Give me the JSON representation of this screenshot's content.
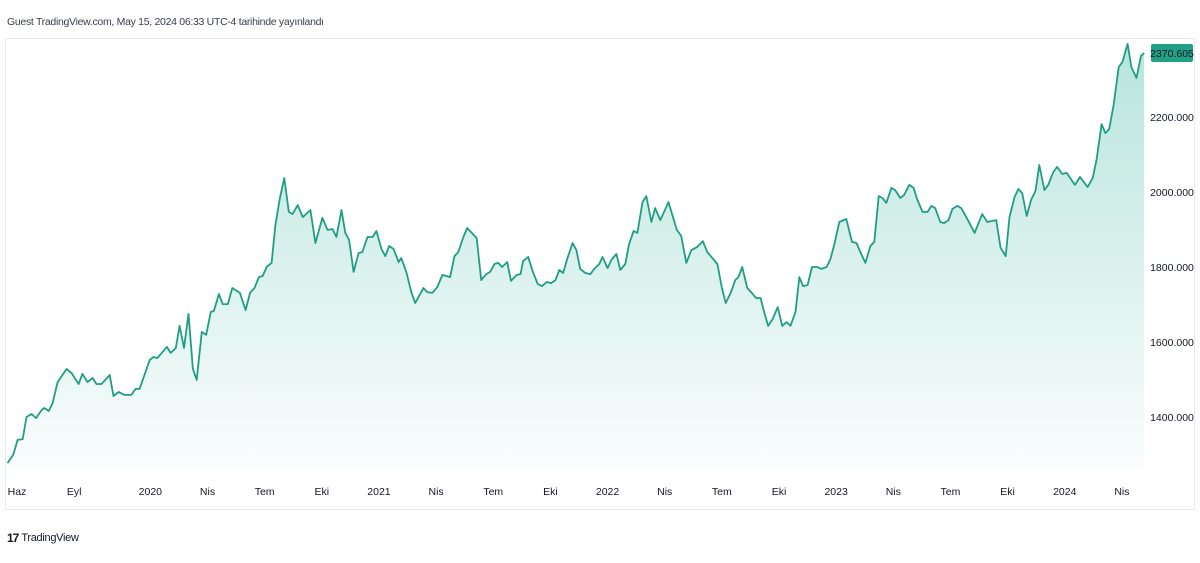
{
  "header": {
    "text": "Guest TradingView.com, May 15, 2024 06:33 UTC-4 tarihinde yayınlandı"
  },
  "footer": {
    "logo": "17",
    "brand": "TradingView"
  },
  "colors": {
    "line": "#1f9e86",
    "fill": "#22ab94",
    "price_label_bg": "#22a085",
    "price_label_text": "#ffffff"
  },
  "chart_data": {
    "type": "area",
    "title": "",
    "xlabel": "",
    "ylabel": "",
    "grid": false,
    "ylim": [
      1259,
      2411
    ],
    "y_ticks": [
      "1400.000",
      "1600.000",
      "1800.000",
      "2000.000",
      "2200.000"
    ],
    "x_ticks": [
      {
        "label": "Haz",
        "date": "2019-06-01"
      },
      {
        "label": "Eyl",
        "date": "2019-09-01"
      },
      {
        "label": "2020",
        "date": "2020-01-01"
      },
      {
        "label": "Nis",
        "date": "2020-04-01"
      },
      {
        "label": "Tem",
        "date": "2020-07-01"
      },
      {
        "label": "Eki",
        "date": "2020-10-01"
      },
      {
        "label": "2021",
        "date": "2021-01-01"
      },
      {
        "label": "Nis",
        "date": "2021-04-01"
      },
      {
        "label": "Tem",
        "date": "2021-07-01"
      },
      {
        "label": "Eki",
        "date": "2021-10-01"
      },
      {
        "label": "2022",
        "date": "2022-01-01"
      },
      {
        "label": "Nis",
        "date": "2022-04-01"
      },
      {
        "label": "Tem",
        "date": "2022-07-01"
      },
      {
        "label": "Eki",
        "date": "2022-10-01"
      },
      {
        "label": "2023",
        "date": "2023-01-01"
      },
      {
        "label": "Nis",
        "date": "2023-04-01"
      },
      {
        "label": "Tem",
        "date": "2023-07-01"
      },
      {
        "label": "Eki",
        "date": "2023-10-01"
      },
      {
        "label": "2024",
        "date": "2024-01-01"
      },
      {
        "label": "Nis",
        "date": "2024-04-01"
      }
    ],
    "last_price": "2370.605",
    "series": [
      {
        "points": [
          [
            "2019-05-16",
            1277
          ],
          [
            "2019-05-25",
            1299
          ],
          [
            "2019-06-02",
            1339
          ],
          [
            "2019-06-10",
            1341
          ],
          [
            "2019-06-16",
            1400
          ],
          [
            "2019-06-24",
            1408
          ],
          [
            "2019-07-01",
            1397
          ],
          [
            "2019-07-10",
            1419
          ],
          [
            "2019-07-14",
            1424
          ],
          [
            "2019-07-21",
            1416
          ],
          [
            "2019-07-27",
            1437
          ],
          [
            "2019-08-05",
            1493
          ],
          [
            "2019-08-19",
            1528
          ],
          [
            "2019-08-27",
            1517
          ],
          [
            "2019-09-08",
            1488
          ],
          [
            "2019-09-14",
            1515
          ],
          [
            "2019-09-22",
            1493
          ],
          [
            "2019-09-30",
            1504
          ],
          [
            "2019-10-06",
            1488
          ],
          [
            "2019-10-14",
            1488
          ],
          [
            "2019-10-27",
            1512
          ],
          [
            "2019-11-03",
            1456
          ],
          [
            "2019-11-11",
            1467
          ],
          [
            "2019-11-20",
            1459
          ],
          [
            "2019-12-01",
            1459
          ],
          [
            "2019-12-08",
            1475
          ],
          [
            "2019-12-14",
            1475
          ],
          [
            "2019-12-30",
            1552
          ],
          [
            "2020-01-06",
            1560
          ],
          [
            "2020-01-12",
            1557
          ],
          [
            "2020-01-27",
            1587
          ],
          [
            "2020-02-03",
            1571
          ],
          [
            "2020-02-11",
            1584
          ],
          [
            "2020-02-17",
            1643
          ],
          [
            "2020-02-24",
            1584
          ],
          [
            "2020-03-01",
            1675
          ],
          [
            "2020-03-08",
            1528
          ],
          [
            "2020-03-14",
            1499
          ],
          [
            "2020-03-22",
            1627
          ],
          [
            "2020-03-29",
            1619
          ],
          [
            "2020-04-06",
            1680
          ],
          [
            "2020-04-11",
            1683
          ],
          [
            "2020-04-19",
            1728
          ],
          [
            "2020-04-25",
            1701
          ],
          [
            "2020-05-03",
            1701
          ],
          [
            "2020-05-10",
            1744
          ],
          [
            "2020-05-22",
            1731
          ],
          [
            "2020-06-01",
            1685
          ],
          [
            "2020-06-08",
            1731
          ],
          [
            "2020-06-15",
            1744
          ],
          [
            "2020-06-22",
            1773
          ],
          [
            "2020-06-28",
            1776
          ],
          [
            "2020-07-04",
            1800
          ],
          [
            "2020-07-12",
            1811
          ],
          [
            "2020-07-18",
            1912
          ],
          [
            "2020-07-25",
            1984
          ],
          [
            "2020-08-02",
            2037
          ],
          [
            "2020-08-09",
            1947
          ],
          [
            "2020-08-15",
            1941
          ],
          [
            "2020-08-23",
            1965
          ],
          [
            "2020-09-01",
            1933
          ],
          [
            "2020-09-13",
            1952
          ],
          [
            "2020-09-21",
            1864
          ],
          [
            "2020-10-02",
            1931
          ],
          [
            "2020-10-10",
            1899
          ],
          [
            "2020-10-18",
            1901
          ],
          [
            "2020-10-24",
            1880
          ],
          [
            "2020-11-02",
            1952
          ],
          [
            "2020-11-08",
            1891
          ],
          [
            "2020-11-14",
            1872
          ],
          [
            "2020-11-21",
            1787
          ],
          [
            "2020-11-29",
            1837
          ],
          [
            "2020-12-05",
            1840
          ],
          [
            "2020-12-13",
            1880
          ],
          [
            "2020-12-21",
            1880
          ],
          [
            "2020-12-27",
            1896
          ],
          [
            "2021-01-05",
            1848
          ],
          [
            "2021-01-11",
            1829
          ],
          [
            "2021-01-17",
            1856
          ],
          [
            "2021-01-24",
            1848
          ],
          [
            "2021-02-02",
            1813
          ],
          [
            "2021-02-06",
            1824
          ],
          [
            "2021-02-14",
            1787
          ],
          [
            "2021-02-22",
            1733
          ],
          [
            "2021-02-28",
            1704
          ],
          [
            "2021-03-05",
            1725
          ],
          [
            "2021-03-11",
            1744
          ],
          [
            "2021-03-17",
            1733
          ],
          [
            "2021-03-25",
            1731
          ],
          [
            "2021-04-03",
            1747
          ],
          [
            "2021-04-11",
            1779
          ],
          [
            "2021-04-17",
            1776
          ],
          [
            "2021-04-23",
            1773
          ],
          [
            "2021-04-30",
            1829
          ],
          [
            "2021-05-06",
            1840
          ],
          [
            "2021-05-14",
            1880
          ],
          [
            "2021-05-20",
            1904
          ],
          [
            "2021-06-05",
            1877
          ],
          [
            "2021-06-12",
            1765
          ],
          [
            "2021-06-20",
            1781
          ],
          [
            "2021-06-26",
            1787
          ],
          [
            "2021-07-03",
            1808
          ],
          [
            "2021-07-09",
            1811
          ],
          [
            "2021-07-15",
            1800
          ],
          [
            "2021-07-23",
            1813
          ],
          [
            "2021-07-29",
            1763
          ],
          [
            "2021-08-08",
            1779
          ],
          [
            "2021-08-14",
            1781
          ],
          [
            "2021-08-18",
            1816
          ],
          [
            "2021-08-26",
            1827
          ],
          [
            "2021-09-03",
            1789
          ],
          [
            "2021-09-11",
            1755
          ],
          [
            "2021-09-18",
            1749
          ],
          [
            "2021-09-25",
            1760
          ],
          [
            "2021-10-02",
            1757
          ],
          [
            "2021-10-09",
            1765
          ],
          [
            "2021-10-15",
            1792
          ],
          [
            "2021-10-21",
            1784
          ],
          [
            "2021-10-28",
            1824
          ],
          [
            "2021-11-06",
            1864
          ],
          [
            "2021-11-12",
            1845
          ],
          [
            "2021-11-18",
            1795
          ],
          [
            "2021-11-26",
            1784
          ],
          [
            "2021-12-04",
            1781
          ],
          [
            "2021-12-10",
            1795
          ],
          [
            "2021-12-18",
            1808
          ],
          [
            "2021-12-23",
            1827
          ],
          [
            "2022-01-01",
            1797
          ],
          [
            "2022-01-07",
            1819
          ],
          [
            "2022-01-15",
            1835
          ],
          [
            "2022-01-21",
            1792
          ],
          [
            "2022-01-29",
            1808
          ],
          [
            "2022-02-05",
            1861
          ],
          [
            "2022-02-12",
            1896
          ],
          [
            "2022-02-18",
            1891
          ],
          [
            "2022-02-26",
            1973
          ],
          [
            "2022-03-02",
            1989
          ],
          [
            "2022-03-10",
            1920
          ],
          [
            "2022-03-16",
            1957
          ],
          [
            "2022-03-24",
            1925
          ],
          [
            "2022-04-07",
            1973
          ],
          [
            "2022-04-20",
            1899
          ],
          [
            "2022-04-27",
            1883
          ],
          [
            "2022-05-05",
            1811
          ],
          [
            "2022-05-13",
            1845
          ],
          [
            "2022-05-22",
            1853
          ],
          [
            "2022-06-01",
            1869
          ],
          [
            "2022-06-08",
            1840
          ],
          [
            "2022-06-24",
            1808
          ],
          [
            "2022-07-01",
            1744
          ],
          [
            "2022-07-07",
            1704
          ],
          [
            "2022-07-15",
            1731
          ],
          [
            "2022-07-22",
            1765
          ],
          [
            "2022-07-27",
            1773
          ],
          [
            "2022-08-03",
            1800
          ],
          [
            "2022-08-11",
            1744
          ],
          [
            "2022-08-17",
            1733
          ],
          [
            "2022-08-25",
            1717
          ],
          [
            "2022-09-02",
            1717
          ],
          [
            "2022-09-08",
            1677
          ],
          [
            "2022-09-14",
            1643
          ],
          [
            "2022-09-21",
            1661
          ],
          [
            "2022-09-29",
            1693
          ],
          [
            "2022-10-06",
            1643
          ],
          [
            "2022-10-13",
            1653
          ],
          [
            "2022-10-19",
            1643
          ],
          [
            "2022-10-27",
            1680
          ],
          [
            "2022-11-03",
            1773
          ],
          [
            "2022-11-09",
            1749
          ],
          [
            "2022-11-16",
            1752
          ],
          [
            "2022-11-23",
            1800
          ],
          [
            "2022-12-01",
            1800
          ],
          [
            "2022-12-08",
            1795
          ],
          [
            "2022-12-16",
            1800
          ],
          [
            "2022-12-22",
            1821
          ],
          [
            "2022-12-28",
            1859
          ],
          [
            "2023-01-06",
            1920
          ],
          [
            "2023-01-17",
            1928
          ],
          [
            "2023-01-26",
            1867
          ],
          [
            "2023-02-03",
            1864
          ],
          [
            "2023-02-09",
            1840
          ],
          [
            "2023-02-17",
            1811
          ],
          [
            "2023-02-25",
            1856
          ],
          [
            "2023-03-01",
            1867
          ],
          [
            "2023-03-08",
            1989
          ],
          [
            "2023-03-14",
            1984
          ],
          [
            "2023-03-20",
            1971
          ],
          [
            "2023-03-28",
            2011
          ],
          [
            "2023-04-04",
            2005
          ],
          [
            "2023-04-12",
            1984
          ],
          [
            "2023-04-18",
            1992
          ],
          [
            "2023-04-26",
            2019
          ],
          [
            "2023-05-03",
            2011
          ],
          [
            "2023-05-09",
            1979
          ],
          [
            "2023-05-17",
            1947
          ],
          [
            "2023-05-25",
            1947
          ],
          [
            "2023-06-01",
            1963
          ],
          [
            "2023-06-07",
            1957
          ],
          [
            "2023-06-15",
            1920
          ],
          [
            "2023-06-21",
            1917
          ],
          [
            "2023-06-28",
            1925
          ],
          [
            "2023-07-04",
            1955
          ],
          [
            "2023-07-12",
            1963
          ],
          [
            "2023-07-18",
            1957
          ],
          [
            "2023-07-26",
            1933
          ],
          [
            "2023-08-09",
            1891
          ],
          [
            "2023-08-21",
            1941
          ],
          [
            "2023-08-29",
            1920
          ],
          [
            "2023-09-13",
            1925
          ],
          [
            "2023-09-20",
            1851
          ],
          [
            "2023-09-28",
            1829
          ],
          [
            "2023-10-04",
            1933
          ],
          [
            "2023-10-12",
            1987
          ],
          [
            "2023-10-18",
            2008
          ],
          [
            "2023-10-24",
            1997
          ],
          [
            "2023-11-01",
            1936
          ],
          [
            "2023-11-08",
            1979
          ],
          [
            "2023-11-15",
            2003
          ],
          [
            "2023-11-21",
            2072
          ],
          [
            "2023-11-29",
            2005
          ],
          [
            "2023-12-05",
            2019
          ],
          [
            "2023-12-13",
            2053
          ],
          [
            "2023-12-19",
            2067
          ],
          [
            "2023-12-27",
            2048
          ],
          [
            "2024-01-04",
            2051
          ],
          [
            "2024-01-17",
            2019
          ],
          [
            "2024-01-25",
            2040
          ],
          [
            "2024-02-07",
            2013
          ],
          [
            "2024-02-15",
            2037
          ],
          [
            "2024-02-21",
            2085
          ],
          [
            "2024-02-29",
            2181
          ],
          [
            "2024-03-05",
            2157
          ],
          [
            "2024-03-11",
            2168
          ],
          [
            "2024-03-18",
            2232
          ],
          [
            "2024-03-26",
            2333
          ],
          [
            "2024-04-02",
            2347
          ],
          [
            "2024-04-10",
            2395
          ],
          [
            "2024-04-16",
            2333
          ],
          [
            "2024-04-24",
            2304
          ],
          [
            "2024-05-01",
            2363
          ],
          [
            "2024-05-06",
            2370.605
          ]
        ]
      }
    ]
  }
}
